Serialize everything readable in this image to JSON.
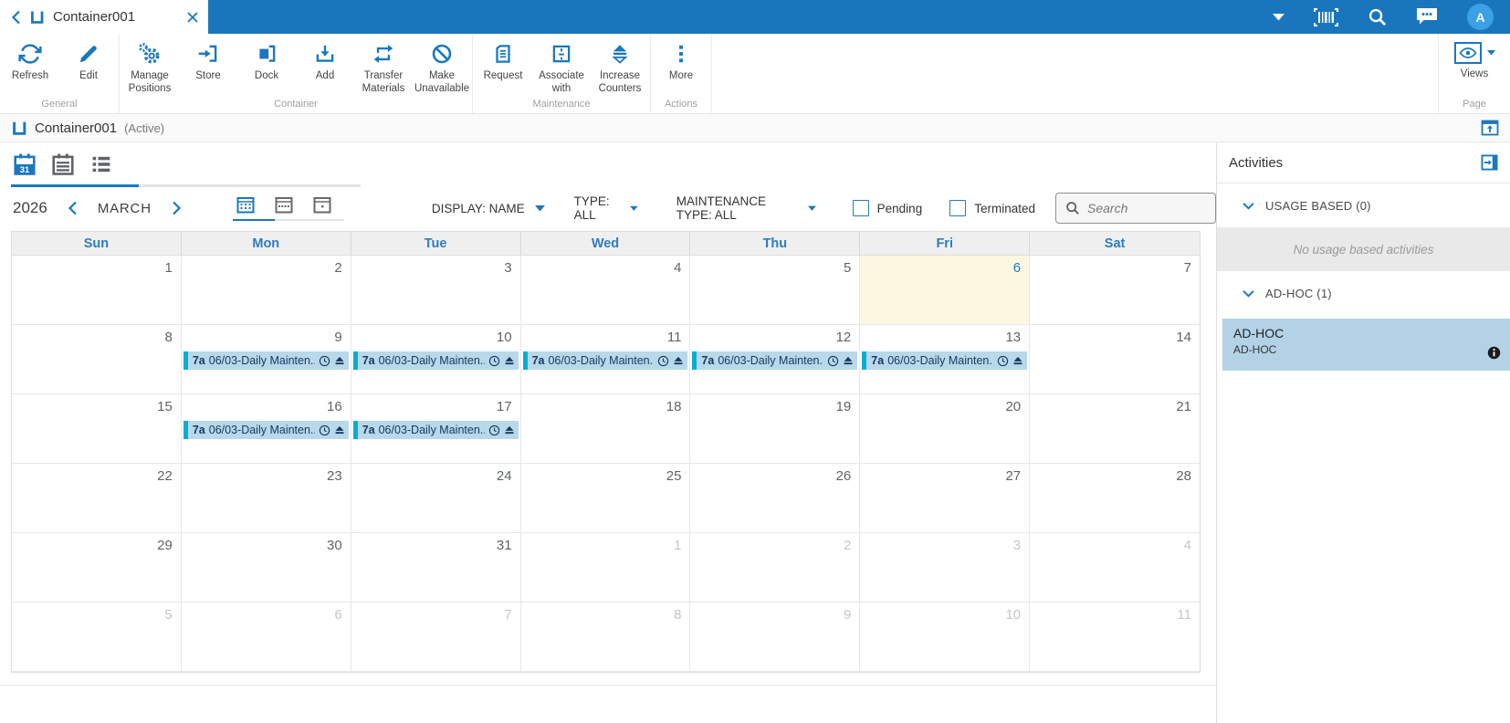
{
  "topbar": {
    "tab_title": "Container001",
    "avatar_letter": "A"
  },
  "ribbon": {
    "groups": [
      {
        "label": "General",
        "buttons": [
          {
            "label": "Refresh"
          },
          {
            "label": "Edit"
          }
        ]
      },
      {
        "label": "Container",
        "buttons": [
          {
            "label": "Manage Positions"
          },
          {
            "label": "Store"
          },
          {
            "label": "Dock"
          },
          {
            "label": "Add"
          },
          {
            "label": "Transfer Materials"
          },
          {
            "label": "Make Unavailable"
          }
        ]
      },
      {
        "label": "Maintenance",
        "buttons": [
          {
            "label": "Request"
          },
          {
            "label": "Associate with"
          },
          {
            "label": "Increase Counters"
          }
        ]
      },
      {
        "label": "Actions",
        "buttons": [
          {
            "label": "More"
          }
        ]
      },
      {
        "label": "Page",
        "buttons": [
          {
            "label": "Views"
          }
        ]
      }
    ]
  },
  "pagehead": {
    "title": "Container001",
    "status": "(Active)"
  },
  "filters": {
    "display": "DISPLAY: NAME",
    "type": "TYPE: ALL",
    "maintenance_type": "MAINTENANCE TYPE: ALL",
    "pending": "Pending",
    "terminated": "Terminated",
    "search_placeholder": "Search"
  },
  "calendar": {
    "year": "2026",
    "month": "MARCH",
    "day_headers": [
      "Sun",
      "Mon",
      "Tue",
      "Wed",
      "Thu",
      "Fri",
      "Sat"
    ],
    "event": {
      "time": "7a",
      "title": "06/03-Daily Mainten..."
    },
    "weeks": [
      [
        {
          "day": "1"
        },
        {
          "day": "2"
        },
        {
          "day": "3"
        },
        {
          "day": "4"
        },
        {
          "day": "5"
        },
        {
          "day": "6",
          "today": true
        },
        {
          "day": "7"
        }
      ],
      [
        {
          "day": "8"
        },
        {
          "day": "9",
          "event": true
        },
        {
          "day": "10",
          "event": true
        },
        {
          "day": "11",
          "event": true
        },
        {
          "day": "12",
          "event": true
        },
        {
          "day": "13",
          "event": true
        },
        {
          "day": "14"
        }
      ],
      [
        {
          "day": "15"
        },
        {
          "day": "16",
          "event": true
        },
        {
          "day": "17",
          "event": true
        },
        {
          "day": "18"
        },
        {
          "day": "19"
        },
        {
          "day": "20"
        },
        {
          "day": "21"
        }
      ],
      [
        {
          "day": "22"
        },
        {
          "day": "23"
        },
        {
          "day": "24"
        },
        {
          "day": "25"
        },
        {
          "day": "26"
        },
        {
          "day": "27"
        },
        {
          "day": "28"
        }
      ],
      [
        {
          "day": "29"
        },
        {
          "day": "30"
        },
        {
          "day": "31"
        },
        {
          "day": "1",
          "other": true
        },
        {
          "day": "2",
          "other": true
        },
        {
          "day": "3",
          "other": true
        },
        {
          "day": "4",
          "other": true
        }
      ],
      [
        {
          "day": "5",
          "other": true
        },
        {
          "day": "6",
          "other": true
        },
        {
          "day": "7",
          "other": true
        },
        {
          "day": "8",
          "other": true
        },
        {
          "day": "9",
          "other": true
        },
        {
          "day": "10",
          "other": true
        },
        {
          "day": "11",
          "other": true
        }
      ]
    ]
  },
  "sidebar": {
    "title": "Activities",
    "usage_group_label": "USAGE BASED (0)",
    "usage_empty_text": "No usage based activities",
    "adhoc_group_label": "AD-HOC (1)",
    "card": {
      "title": "AD-HOC",
      "subtitle": "AD-HOC"
    }
  },
  "colors": {
    "accent_blue": "#1a76bc",
    "icon_blue": "#1a78be",
    "chip_background": "#b9d8ea",
    "chip_bar": "#06aed0",
    "today_background": "#fbf7e1",
    "selected_card_background": "#b3d2e6",
    "avatar_background": "#3ba0e6"
  }
}
